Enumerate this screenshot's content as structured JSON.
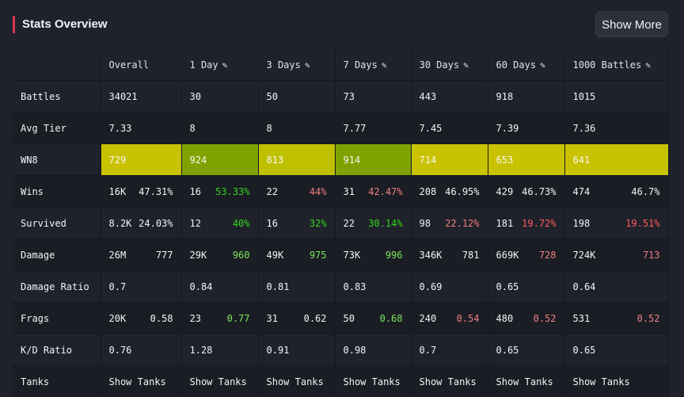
{
  "header": {
    "title": "Stats Overview",
    "show_more_label": "Show More"
  },
  "columns": [
    "Overall",
    "1 Day",
    "3 Days",
    "7 Days",
    "30 Days",
    "60 Days",
    "1000 Battles"
  ],
  "rows": {
    "battles": {
      "label": "Battles",
      "values": [
        "34021",
        "30",
        "50",
        "73",
        "443",
        "918",
        "1015"
      ]
    },
    "avg_tier": {
      "label": "Avg Tier",
      "values": [
        "7.33",
        "8",
        "8",
        "7.77",
        "7.45",
        "7.39",
        "7.36"
      ]
    },
    "wn8": {
      "label": "WN8",
      "values": [
        "729",
        "924",
        "813",
        "914",
        "714",
        "653",
        "641"
      ]
    },
    "wins": {
      "label": "Wins",
      "count": [
        "16K",
        "16",
        "22",
        "31",
        "208",
        "429",
        "474"
      ],
      "pct": [
        "47.31%",
        "53.33%",
        "44%",
        "42.47%",
        "46.95%",
        "46.73%",
        "46.7%"
      ]
    },
    "survived": {
      "label": "Survived",
      "count": [
        "8.2K",
        "12",
        "16",
        "22",
        "98",
        "181",
        "198"
      ],
      "pct": [
        "24.03%",
        "40%",
        "32%",
        "30.14%",
        "22.12%",
        "19.72%",
        "19.51%"
      ]
    },
    "damage": {
      "label": "Damage",
      "total": [
        "26M",
        "29K",
        "49K",
        "73K",
        "346K",
        "669K",
        "724K"
      ],
      "avg": [
        "777",
        "960",
        "975",
        "996",
        "781",
        "728",
        "713"
      ]
    },
    "damage_ratio": {
      "label": "Damage Ratio",
      "values": [
        "0.7",
        "0.84",
        "0.81",
        "0.83",
        "0.69",
        "0.65",
        "0.64"
      ]
    },
    "frags": {
      "label": "Frags",
      "total": [
        "20K",
        "23",
        "31",
        "50",
        "240",
        "480",
        "531"
      ],
      "avg": [
        "0.58",
        "0.77",
        "0.62",
        "0.68",
        "0.54",
        "0.52",
        "0.52"
      ]
    },
    "kd_ratio": {
      "label": "K/D Ratio",
      "values": [
        "0.76",
        "1.28",
        "0.91",
        "0.98",
        "0.7",
        "0.65",
        "0.65"
      ]
    },
    "tanks": {
      "label": "Tanks",
      "link_label": "Show Tanks"
    }
  },
  "colors": {
    "accent": "#d6334d",
    "wn8_yellow": "#c9c200",
    "wn8_green": "#80a200",
    "positive": "#33d61f",
    "negative": "#ff5b5b"
  },
  "icons": {
    "edit": "pencil-icon"
  }
}
